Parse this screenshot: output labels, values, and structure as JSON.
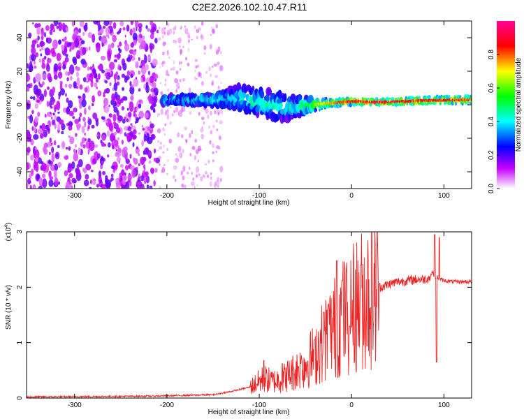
{
  "title": "C2E2.2026.102.10.47.R11",
  "chart_data": [
    {
      "type": "heatmap",
      "title": "C2E2.2026.102.10.47.R11",
      "xlabel": "Height of straight line (km)",
      "ylabel": "Frequency (Hz)",
      "xlim": [
        -352,
        130
      ],
      "ylim": [
        -50,
        50
      ],
      "xticks": [
        -300,
        -200,
        -100,
        0,
        100
      ],
      "yticks": [
        -40,
        -20,
        0,
        20,
        40
      ],
      "xtick_labels": [
        "-300",
        "-200",
        "-100",
        "0",
        "100"
      ],
      "ytick_labels": [
        "-40",
        "-20",
        "0",
        "20",
        "40"
      ],
      "colorbar": {
        "label": "Normalized spectral amplitude",
        "range": [
          0,
          1
        ],
        "ticks": [
          0.0,
          0.2,
          0.4,
          0.6,
          0.8
        ],
        "tick_labels": [
          "0.0",
          "0.2",
          "0.4",
          "0.6",
          "0.8"
        ]
      },
      "features": [
        {
          "name": "background noise",
          "x_range": [
            -352,
            -210
          ],
          "freq_range": [
            -50,
            50
          ],
          "amplitude": 0.15
        },
        {
          "name": "sparse noise",
          "x_range": [
            -210,
            -140
          ],
          "freq_range": [
            -50,
            50
          ],
          "amplitude": 0.05
        },
        {
          "name": "signal band",
          "points": [
            {
              "x": -205,
              "f": 3,
              "half_width": 1.5,
              "amplitude": 0.45
            },
            {
              "x": -150,
              "f": 3,
              "half_width": 3,
              "amplitude": 0.4
            },
            {
              "x": -120,
              "f": 4,
              "half_width": 7,
              "amplitude": 0.42
            },
            {
              "x": -90,
              "f": 0,
              "half_width": 8,
              "amplitude": 0.45
            },
            {
              "x": -65,
              "f": -2,
              "half_width": 7,
              "amplitude": 0.42
            },
            {
              "x": -45,
              "f": 0,
              "half_width": 4,
              "amplitude": 0.55
            },
            {
              "x": -20,
              "f": 1,
              "half_width": 2,
              "amplitude": 0.7
            },
            {
              "x": 0,
              "f": 2,
              "half_width": 2,
              "amplitude": 0.8
            },
            {
              "x": 30,
              "f": 1.5,
              "half_width": 1.5,
              "amplitude": 0.85
            },
            {
              "x": 80,
              "f": 2.5,
              "half_width": 2,
              "amplitude": 0.8
            },
            {
              "x": 130,
              "f": 3,
              "half_width": 2,
              "amplitude": 0.75
            }
          ]
        }
      ]
    },
    {
      "type": "line",
      "title": "",
      "xlabel": "Height of straight line (km)",
      "ylabel": "SNR (10 * v/v)",
      "scale_label": "(x10^4)",
      "scale_base": "(x10",
      "scale_exp": "4",
      "scale_close": ")",
      "xlim": [
        -352,
        130
      ],
      "ylim": [
        0,
        3
      ],
      "xticks": [
        -300,
        -200,
        -100,
        0,
        100
      ],
      "yticks": [
        0,
        1,
        2,
        3
      ],
      "xtick_labels": [
        "-300",
        "-200",
        "-100",
        "0",
        "100"
      ],
      "ytick_labels": [
        "0",
        "1",
        "2",
        "3"
      ],
      "series": [
        {
          "name": "SNR",
          "color": "#ee2222",
          "x": [
            -352,
            -250,
            -200,
            -150,
            -130,
            -110,
            -100,
            -95,
            -85,
            -75,
            -65,
            -60,
            -50,
            -40,
            -30,
            -20,
            -15,
            -10,
            0,
            10,
            20,
            30,
            40,
            50,
            60,
            70,
            80,
            85,
            88,
            90,
            92,
            95,
            100,
            110,
            120,
            130
          ],
          "y": [
            0.02,
            0.03,
            0.04,
            0.06,
            0.12,
            0.2,
            0.3,
            0.35,
            0.3,
            0.35,
            0.45,
            0.5,
            0.6,
            0.8,
            1.05,
            1.25,
            1.35,
            1.45,
            1.6,
            1.75,
            1.9,
            2.0,
            2.05,
            2.1,
            2.12,
            2.14,
            2.15,
            2.17,
            2.3,
            2.1,
            2.2,
            2.15,
            2.12,
            2.1,
            2.1,
            2.1
          ],
          "spikes": [
            {
              "x": -95,
              "y": 0.68
            },
            {
              "x": -75,
              "y": 0.62
            },
            {
              "x": -55,
              "y": 0.62
            },
            {
              "x": -40,
              "y": 1.05
            },
            {
              "x": -30,
              "y": 1.55
            },
            {
              "x": -25,
              "y": 1.7
            },
            {
              "x": -16,
              "y": 2.48
            },
            {
              "x": -10,
              "y": 2.12
            },
            {
              "x": -2,
              "y": 1.3
            },
            {
              "x": 10,
              "y": 2.4
            },
            {
              "x": 90,
              "y": 2.95
            },
            {
              "x": 92,
              "y": 0.65
            },
            {
              "x": 95,
              "y": 2.9
            }
          ]
        }
      ]
    }
  ]
}
